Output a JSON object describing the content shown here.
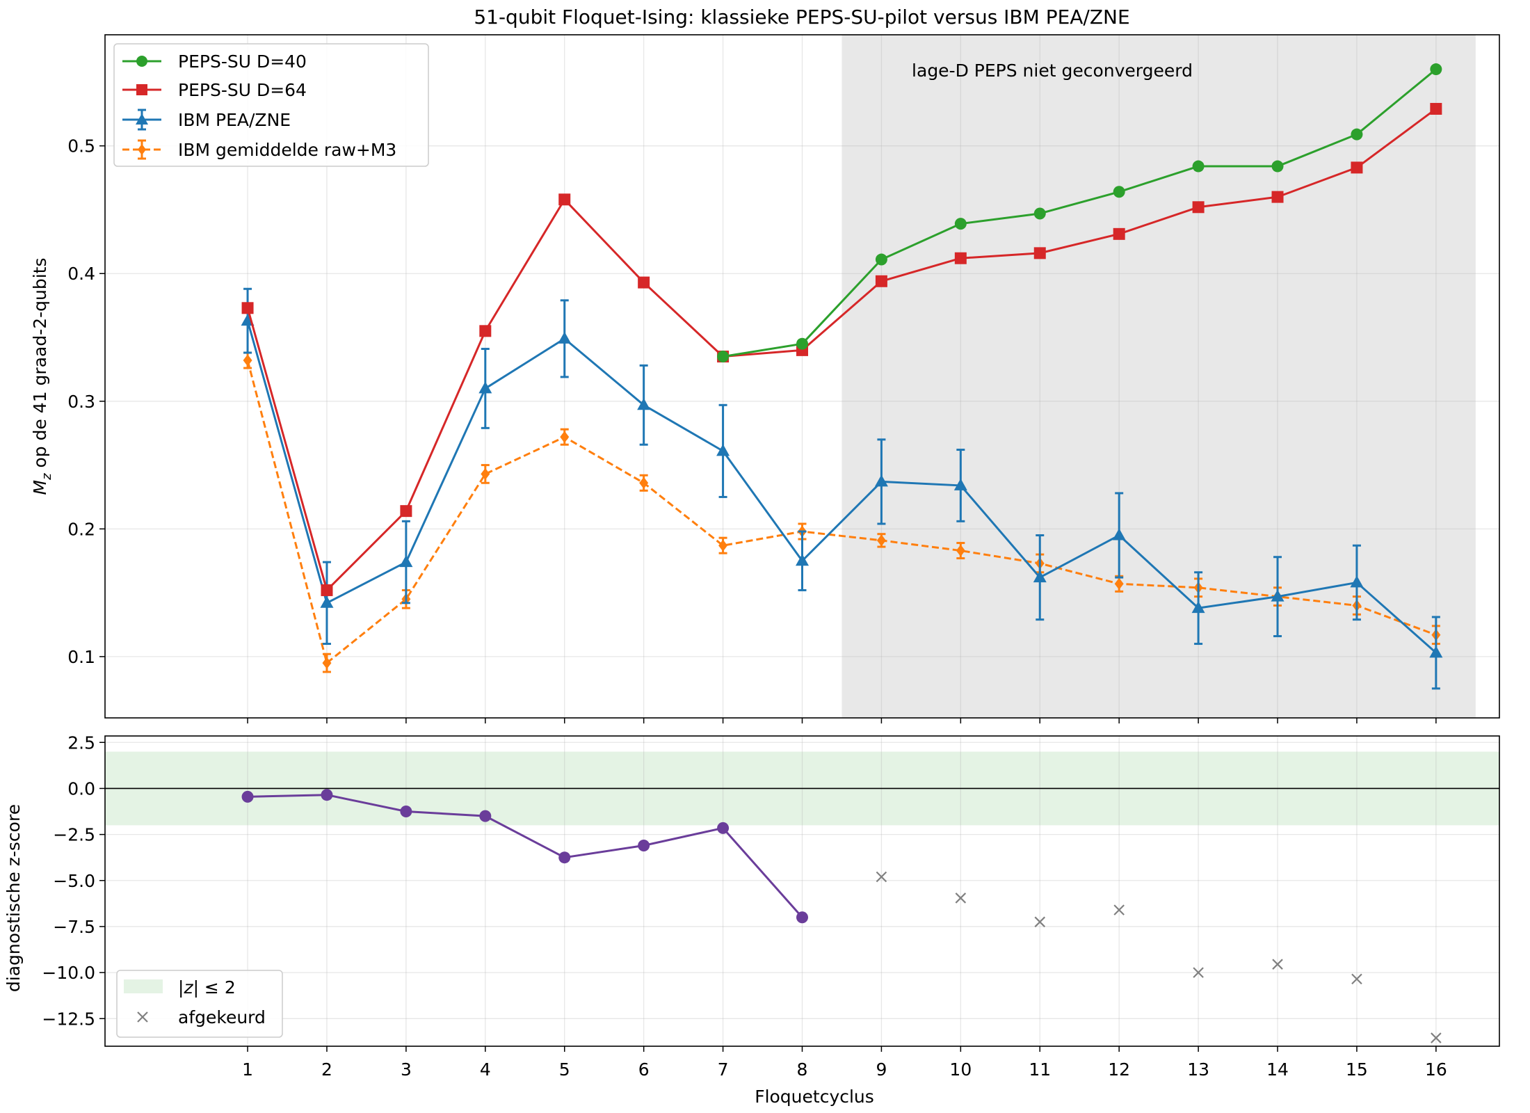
{
  "chart_data": [
    {
      "type": "line",
      "title": "51-qubit Floquet-Ising: klassieke PEPS-SU-pilot versus IBM PEA/ZNE",
      "ylabel_main": "M",
      "ylabel_sub": "z",
      "ylabel_rest": " op de 41 graad-2-qubits",
      "x": [
        1,
        2,
        3,
        4,
        5,
        6,
        7,
        8,
        9,
        10,
        11,
        12,
        13,
        14,
        15,
        16
      ],
      "xlim": [
        -0.8,
        16.8
      ],
      "ylim": [
        0.052,
        0.587
      ],
      "yticks": [
        0.1,
        0.2,
        0.3,
        0.4,
        0.5
      ],
      "ytick_labels": [
        "0.1",
        "0.2",
        "0.3",
        "0.4",
        "0.5"
      ],
      "grid": true,
      "legend_position": "top-left",
      "shaded_region": {
        "x0": 8.5,
        "x1": 16.5,
        "color": "#e8e8e8",
        "label": "lage-D PEPS niet geconvergeerd"
      },
      "series": [
        {
          "name": "PEPS-SU D=40",
          "color": "#2ca02c",
          "marker": "circle",
          "dash": false,
          "x": [
            7,
            8,
            9,
            10,
            11,
            12,
            13,
            14,
            15,
            16
          ],
          "values": [
            0.335,
            0.345,
            0.411,
            0.439,
            0.447,
            0.464,
            0.484,
            0.484,
            0.509,
            0.56
          ]
        },
        {
          "name": "PEPS-SU D=64",
          "color": "#d62728",
          "marker": "square",
          "dash": false,
          "x": [
            1,
            2,
            3,
            4,
            5,
            6,
            7,
            8,
            9,
            10,
            11,
            12,
            13,
            14,
            15,
            16
          ],
          "values": [
            0.373,
            0.152,
            0.214,
            0.355,
            0.458,
            0.393,
            0.335,
            0.34,
            0.394,
            0.412,
            0.416,
            0.431,
            0.452,
            0.46,
            0.483,
            0.529
          ]
        },
        {
          "name": "IBM PEA/ZNE",
          "color": "#1f77b4",
          "marker": "triangle",
          "dash": false,
          "x": [
            1,
            2,
            3,
            4,
            5,
            6,
            7,
            8,
            9,
            10,
            11,
            12,
            13,
            14,
            15,
            16
          ],
          "values": [
            0.363,
            0.142,
            0.174,
            0.31,
            0.349,
            0.297,
            0.261,
            0.175,
            0.237,
            0.234,
            0.162,
            0.195,
            0.138,
            0.147,
            0.158,
            0.103
          ],
          "errors": [
            0.025,
            0.032,
            0.032,
            0.031,
            0.03,
            0.031,
            0.036,
            0.023,
            0.033,
            0.028,
            0.033,
            0.033,
            0.028,
            0.031,
            0.029,
            0.028
          ]
        },
        {
          "name": "IBM gemiddelde raw+M3",
          "color": "#ff7f0e",
          "marker": "diamond",
          "dash": true,
          "x": [
            1,
            2,
            3,
            4,
            5,
            6,
            7,
            8,
            9,
            10,
            11,
            12,
            13,
            14,
            15,
            16
          ],
          "values": [
            0.332,
            0.095,
            0.145,
            0.243,
            0.272,
            0.236,
            0.187,
            0.198,
            0.191,
            0.183,
            0.173,
            0.157,
            0.154,
            0.147,
            0.14,
            0.117
          ],
          "errors": [
            0.006,
            0.007,
            0.007,
            0.007,
            0.006,
            0.006,
            0.006,
            0.006,
            0.005,
            0.006,
            0.007,
            0.006,
            0.007,
            0.007,
            0.007,
            0.007
          ]
        }
      ]
    },
    {
      "type": "scatter",
      "xlabel": "Floquetcyclus",
      "ylabel": "diagnostische z-score",
      "x_ticks": [
        1,
        2,
        3,
        4,
        5,
        6,
        7,
        8,
        9,
        10,
        11,
        12,
        13,
        14,
        15,
        16
      ],
      "xlim": [
        -0.8,
        16.8
      ],
      "ylim": [
        -14.0,
        2.85
      ],
      "yticks": [
        2.5,
        0.0,
        -2.5,
        -5.0,
        -7.5,
        -10.0,
        -12.5
      ],
      "ytick_labels": [
        "2.5",
        "0.0",
        "−2.5",
        "−5.0",
        "−7.5",
        "−10.0",
        "−12.5"
      ],
      "grid": true,
      "legend_position": "bottom-left",
      "band": {
        "y0": -2,
        "y1": 2,
        "color": "#2ca02c",
        "label_pre": "|",
        "label_var": "z",
        "label_post": "| ≤ 2"
      },
      "zero_line": 0,
      "series": [
        {
          "name": "",
          "color": "#6a3d9a",
          "marker": "circle",
          "x": [
            1,
            2,
            3,
            4,
            5,
            6,
            7,
            8
          ],
          "values": [
            -0.45,
            -0.35,
            -1.25,
            -1.5,
            -3.75,
            -3.1,
            -2.15,
            -7.0
          ]
        },
        {
          "name": "afgekeurd",
          "color": "#808080",
          "marker": "x",
          "x": [
            9,
            10,
            11,
            12,
            13,
            14,
            15,
            16
          ],
          "values": [
            -4.8,
            -5.95,
            -7.25,
            -6.6,
            -10.0,
            -9.55,
            -10.35,
            -13.55
          ]
        }
      ]
    }
  ]
}
